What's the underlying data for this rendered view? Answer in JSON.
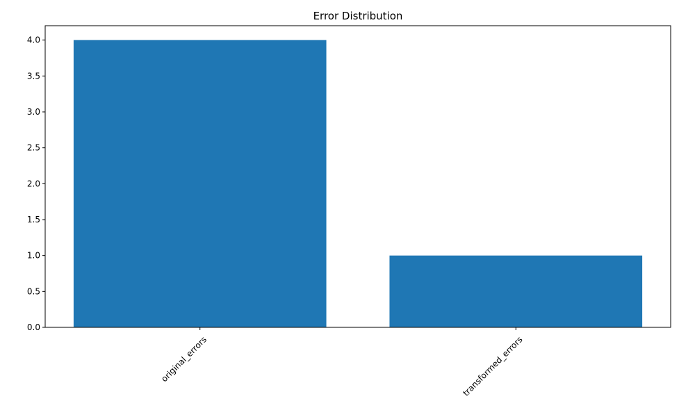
{
  "chart_data": {
    "type": "bar",
    "title": "Error Distribution",
    "xlabel": "",
    "ylabel": "",
    "categories": [
      "original_errors",
      "transformed_errors"
    ],
    "values": [
      4,
      1
    ],
    "ylim": [
      0,
      4.2
    ],
    "yticks": [
      0.0,
      0.5,
      1.0,
      1.5,
      2.0,
      2.5,
      3.0,
      3.5,
      4.0
    ],
    "ytick_labels": [
      "0.0",
      "0.5",
      "1.0",
      "1.5",
      "2.0",
      "2.5",
      "3.0",
      "3.5",
      "4.0"
    ],
    "x_tick_rotation_deg": 45,
    "grid": false,
    "legend": "none",
    "bar_color": "#1f77b4"
  }
}
